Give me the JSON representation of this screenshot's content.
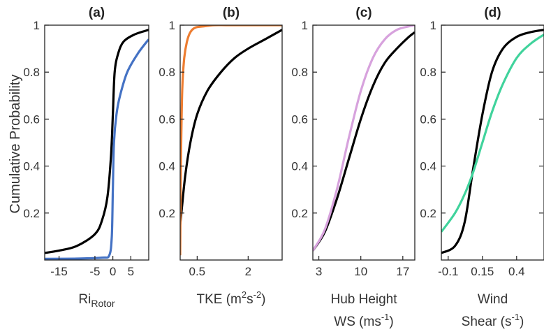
{
  "figure": {
    "ylabel": "Cumulative Probability"
  },
  "chart_data": [
    {
      "type": "line",
      "title": "(a)",
      "xlabel_main": "Ri",
      "xlabel_sub": "Rotor",
      "xlabel_line2": "",
      "xticks": [
        -15,
        -5,
        0,
        5
      ],
      "xtick_labels": [
        "-15",
        "-5",
        "0",
        "5"
      ],
      "xlim": [
        -19,
        10
      ],
      "yticks": [
        0.2,
        0.4,
        0.6,
        0.8,
        1
      ],
      "ytick_labels": [
        "0.2",
        "0.4",
        "0.6",
        "0.8",
        "1"
      ],
      "ylim": [
        0,
        1
      ],
      "series": [
        {
          "color": "#000000",
          "x": [
            -19,
            -15,
            -10,
            -5,
            -3,
            -1.5,
            -0.5,
            0,
            0.5,
            1.5,
            3,
            6,
            10
          ],
          "y": [
            0.03,
            0.04,
            0.06,
            0.11,
            0.17,
            0.27,
            0.45,
            0.62,
            0.8,
            0.88,
            0.93,
            0.96,
            0.98
          ]
        },
        {
          "color": "#4472c4",
          "x": [
            -19,
            -10,
            -3,
            -1,
            -0.3,
            0,
            0.3,
            1,
            2,
            4,
            7,
            10
          ],
          "y": [
            0.005,
            0.006,
            0.01,
            0.02,
            0.1,
            0.3,
            0.5,
            0.62,
            0.7,
            0.8,
            0.88,
            0.94
          ]
        }
      ]
    },
    {
      "type": "line",
      "title": "(b)",
      "xlabel_main": "TKE (m",
      "xlabel_sup": "2",
      "xlabel_mid": "s",
      "xlabel_sup2": "-2",
      "xlabel_end": ")",
      "xlabel_line2": "",
      "xticks": [
        0.5,
        2
      ],
      "xtick_labels": [
        "0.5",
        "2"
      ],
      "xlim": [
        0,
        3
      ],
      "yticks": [
        0.2,
        0.4,
        0.6,
        0.8,
        1
      ],
      "ytick_labels": [
        "0.2",
        "0.4",
        "0.6",
        "0.8",
        "1"
      ],
      "ylim": [
        0,
        1
      ],
      "series": [
        {
          "color": "#000000",
          "x": [
            0,
            0.05,
            0.15,
            0.3,
            0.5,
            0.8,
            1.2,
            1.6,
            2,
            2.5,
            3
          ],
          "y": [
            0.15,
            0.22,
            0.36,
            0.5,
            0.62,
            0.72,
            0.8,
            0.86,
            0.9,
            0.94,
            0.98
          ]
        },
        {
          "color": "#ed7d31",
          "x": [
            0,
            0.02,
            0.06,
            0.12,
            0.2,
            0.3,
            0.45,
            0.7,
            1,
            1.5,
            3
          ],
          "y": [
            0.02,
            0.4,
            0.72,
            0.86,
            0.93,
            0.97,
            0.99,
            0.995,
            1,
            1,
            1
          ]
        }
      ]
    },
    {
      "type": "line",
      "title": "(c)",
      "xlabel_main": "Hub Height",
      "xlabel_line2": "WS (ms",
      "xlabel_line2_sup": "-1",
      "xlabel_line2_end": ")",
      "xticks": [
        3,
        10,
        17
      ],
      "xtick_labels": [
        "3",
        "10",
        "17"
      ],
      "xlim": [
        2,
        19
      ],
      "yticks": [
        0.2,
        0.4,
        0.6,
        0.8,
        1
      ],
      "ytick_labels": [
        "0.2",
        "0.4",
        "0.6",
        "0.8",
        "1"
      ],
      "ylim": [
        0,
        1
      ],
      "series": [
        {
          "color": "#000000",
          "x": [
            2,
            4,
            6,
            8,
            10,
            12,
            14,
            16,
            18,
            19
          ],
          "y": [
            0.04,
            0.12,
            0.26,
            0.43,
            0.6,
            0.74,
            0.84,
            0.9,
            0.95,
            0.97
          ]
        },
        {
          "color": "#d7a2dd",
          "x": [
            2,
            4,
            6,
            8,
            10,
            12,
            14,
            16,
            18,
            19
          ],
          "y": [
            0.04,
            0.13,
            0.3,
            0.52,
            0.72,
            0.86,
            0.94,
            0.98,
            0.995,
            1
          ]
        }
      ]
    },
    {
      "type": "line",
      "title": "(d)",
      "xlabel_main": "Wind",
      "xlabel_line2": "Shear (s",
      "xlabel_line2_sup": "-1",
      "xlabel_line2_end": ")",
      "xticks": [
        -0.1,
        0.15,
        0.4
      ],
      "xtick_labels": [
        "-0.1",
        "0.15",
        "0.4"
      ],
      "xlim": [
        -0.15,
        0.6
      ],
      "yticks": [
        0.2,
        0.4,
        0.6,
        0.8,
        1
      ],
      "ytick_labels": [
        "0.2",
        "0.4",
        "0.6",
        "0.8",
        "1"
      ],
      "ylim": [
        0,
        1
      ],
      "series": [
        {
          "color": "#000000",
          "x": [
            -0.15,
            -0.05,
            0.02,
            0.08,
            0.15,
            0.22,
            0.3,
            0.4,
            0.5,
            0.6
          ],
          "y": [
            0.03,
            0.06,
            0.16,
            0.38,
            0.62,
            0.8,
            0.9,
            0.95,
            0.97,
            0.98
          ]
        },
        {
          "color": "#40d39c",
          "x": [
            -0.15,
            -0.05,
            0.02,
            0.08,
            0.15,
            0.22,
            0.3,
            0.4,
            0.5,
            0.6
          ],
          "y": [
            0.12,
            0.2,
            0.28,
            0.37,
            0.5,
            0.63,
            0.75,
            0.86,
            0.92,
            0.96
          ]
        }
      ]
    }
  ]
}
